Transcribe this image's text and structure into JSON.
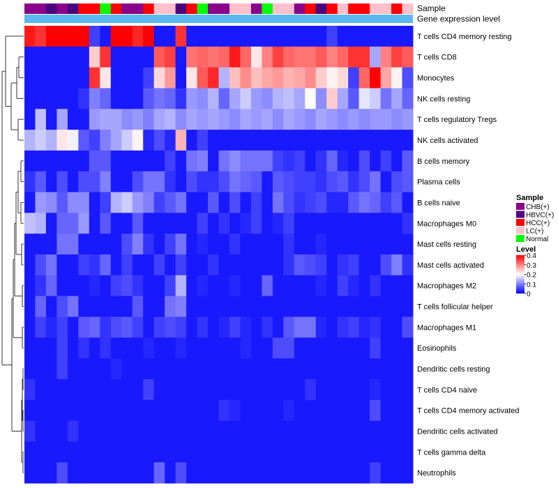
{
  "chart_data": {
    "type": "heatmap",
    "title": "",
    "annotation_labels": {
      "sample": "Sample",
      "gene": "Gene expression level"
    },
    "sample_groups": {
      "CHB(+)": "#8B008B",
      "HBVC(+)": "#4B0082",
      "HCC(+)": "#FF0000",
      "LC(+)": "#FFC0CB",
      "Normal": "#00FF00"
    },
    "samples": [
      "CHB(+)",
      "CHB(+)",
      "HBVC(+)",
      "CHB(+)",
      "HBVC(+)",
      "HCC(+)",
      "HCC(+)",
      "Normal",
      "HCC(+)",
      "CHB(+)",
      "CHB(+)",
      "HCC(+)",
      "LC(+)",
      "LC(+)",
      "HBVC(+)",
      "HCC(+)",
      "Normal",
      "CHB(+)",
      "CHB(+)",
      "LC(+)",
      "LC(+)",
      "CHB(+)",
      "Normal",
      "LC(+)",
      "LC(+)",
      "CHB(+)",
      "HCC(+)",
      "HBVC(+)",
      "HCC(+)",
      "LC(+)",
      "HCC(+)",
      "HCC(+)",
      "LC(+)",
      "LC(+)",
      "HCC(+)",
      "LC(+)"
    ],
    "rows": [
      "T cells CD4 memory resting",
      "T cells CD8",
      "Monocytes",
      "NK cells resting",
      "T cells regulatory  Tregs",
      "NK cells activated",
      "B cells memory",
      "Plasma cells",
      "B cells naive",
      "Macrophages M0",
      "Mast cells resting",
      "Mast cells activated",
      "Macrophages M2",
      "T cells follicular helper",
      "Macrophages M1",
      "Eosinophils",
      "Dendritic cells resting",
      "T cells CD4 naive",
      "T cells CD4 memory activated",
      "Dendritic cells activated",
      "T cells gamma delta",
      "Neutrophils"
    ],
    "values": [
      [
        0.38,
        0.36,
        0.4,
        0.4,
        0.4,
        0.4,
        0.05,
        0.02,
        0.4,
        0.4,
        0.37,
        0.4,
        0.02,
        0.02,
        0.36,
        0.02,
        0.02,
        0.02,
        0.02,
        0.02,
        0.02,
        0.02,
        0.02,
        0.02,
        0.02,
        0.02,
        0.02,
        0.02,
        0.05,
        0.02,
        0.02,
        0.02,
        0.02,
        0.02,
        0.02,
        0.02
      ],
      [
        0.02,
        0.02,
        0.02,
        0.02,
        0.02,
        0.02,
        0.24,
        0.36,
        0.02,
        0.02,
        0.02,
        0.02,
        0.33,
        0.35,
        0.02,
        0.31,
        0.32,
        0.31,
        0.32,
        0.38,
        0.32,
        0.22,
        0.3,
        0.35,
        0.32,
        0.31,
        0.31,
        0.33,
        0.3,
        0.32,
        0.36,
        0.36,
        0.13,
        0.3,
        0.35,
        0.33
      ],
      [
        0.02,
        0.02,
        0.02,
        0.02,
        0.02,
        0.02,
        0.36,
        0.22,
        0.02,
        0.02,
        0.02,
        0.05,
        0.23,
        0.28,
        0.02,
        0.22,
        0.33,
        0.37,
        0.14,
        0.25,
        0.29,
        0.25,
        0.27,
        0.28,
        0.26,
        0.27,
        0.29,
        0.24,
        0.21,
        0.23,
        0.05,
        0.32,
        0.4,
        0.27,
        0.21,
        0.06
      ],
      [
        0.02,
        0.02,
        0.02,
        0.02,
        0.02,
        0.04,
        0.1,
        0.08,
        0.02,
        0.02,
        0.02,
        0.07,
        0.09,
        0.08,
        0.04,
        0.12,
        0.11,
        0.14,
        0.08,
        0.13,
        0.16,
        0.12,
        0.11,
        0.14,
        0.15,
        0.13,
        0.2,
        0.11,
        0.24,
        0.13,
        0.07,
        0.18,
        0.16,
        0.09,
        0.13,
        0.08
      ],
      [
        0.02,
        0.15,
        0.02,
        0.13,
        0.02,
        0.02,
        0.12,
        0.13,
        0.13,
        0.11,
        0.12,
        0.1,
        0.13,
        0.14,
        0.11,
        0.13,
        0.12,
        0.13,
        0.12,
        0.11,
        0.13,
        0.12,
        0.13,
        0.11,
        0.13,
        0.12,
        0.11,
        0.13,
        0.12,
        0.11,
        0.12,
        0.11,
        0.12,
        0.12,
        0.11,
        0.12
      ],
      [
        0.14,
        0.16,
        0.14,
        0.22,
        0.19,
        0.07,
        0.05,
        0.1,
        0.13,
        0.16,
        0.21,
        0.03,
        0.06,
        0.03,
        0.26,
        0.02,
        0.05,
        0.02,
        0.02,
        0.02,
        0.02,
        0.02,
        0.02,
        0.02,
        0.02,
        0.02,
        0.02,
        0.02,
        0.02,
        0.02,
        0.02,
        0.02,
        0.02,
        0.02,
        0.02,
        0.02
      ],
      [
        0.02,
        0.02,
        0.02,
        0.02,
        0.02,
        0.02,
        0.07,
        0.07,
        0.02,
        0.02,
        0.02,
        0.02,
        0.02,
        0.05,
        0.02,
        0.09,
        0.1,
        0.02,
        0.09,
        0.11,
        0.09,
        0.09,
        0.09,
        0.05,
        0.04,
        0.05,
        0.02,
        0.04,
        0.08,
        0.03,
        0.02,
        0.06,
        0.02,
        0.05,
        0.02,
        0.07
      ],
      [
        0.04,
        0.07,
        0.02,
        0.06,
        0.02,
        0.06,
        0.06,
        0.1,
        0.02,
        0.02,
        0.06,
        0.09,
        0.09,
        0.04,
        0.02,
        0.06,
        0.04,
        0.04,
        0.06,
        0.09,
        0.08,
        0.07,
        0.02,
        0.07,
        0.06,
        0.05,
        0.05,
        0.04,
        0.06,
        0.07,
        0.04,
        0.06,
        0.09,
        0.02,
        0.06,
        0.07
      ],
      [
        0.02,
        0.12,
        0.11,
        0.07,
        0.11,
        0.11,
        0.02,
        0.05,
        0.14,
        0.16,
        0.12,
        0.1,
        0.05,
        0.07,
        0.09,
        0.02,
        0.02,
        0.07,
        0.02,
        0.06,
        0.02,
        0.05,
        0.02,
        0.09,
        0.06,
        0.04,
        0.05,
        0.06,
        0.03,
        0.03,
        0.07,
        0.09,
        0.08,
        0.05,
        0.07,
        0.02
      ],
      [
        0.15,
        0.14,
        0.02,
        0.08,
        0.08,
        0.12,
        0.02,
        0.07,
        0.02,
        0.02,
        0.07,
        0.02,
        0.02,
        0.02,
        0.02,
        0.02,
        0.05,
        0.02,
        0.04,
        0.02,
        0.03,
        0.05,
        0.02,
        0.03,
        0.05,
        0.02,
        0.02,
        0.02,
        0.02,
        0.02,
        0.02,
        0.02,
        0.02,
        0.02,
        0.02,
        0.04
      ],
      [
        0.02,
        0.02,
        0.02,
        0.09,
        0.09,
        0.02,
        0.02,
        0.02,
        0.02,
        0.06,
        0.1,
        0.04,
        0.02,
        0.05,
        0.09,
        0.02,
        0.03,
        0.02,
        0.02,
        0.04,
        0.02,
        0.02,
        0.02,
        0.02,
        0.04,
        0.02,
        0.02,
        0.03,
        0.02,
        0.02,
        0.02,
        0.02,
        0.02,
        0.02,
        0.02,
        0.02
      ],
      [
        0.02,
        0.06,
        0.09,
        0.02,
        0.02,
        0.05,
        0.04,
        0.08,
        0.02,
        0.05,
        0.02,
        0.02,
        0.05,
        0.02,
        0.05,
        0.02,
        0.02,
        0.04,
        0.02,
        0.02,
        0.02,
        0.02,
        0.02,
        0.02,
        0.04,
        0.07,
        0.06,
        0.05,
        0.02,
        0.04,
        0.05,
        0.02,
        0.02,
        0.06,
        0.1,
        0.04
      ],
      [
        0.02,
        0.04,
        0.08,
        0.02,
        0.02,
        0.02,
        0.03,
        0.02,
        0.05,
        0.06,
        0.04,
        0.02,
        0.02,
        0.05,
        0.14,
        0.02,
        0.03,
        0.02,
        0.02,
        0.03,
        0.02,
        0.02,
        0.08,
        0.02,
        0.02,
        0.02,
        0.02,
        0.03,
        0.02,
        0.05,
        0.03,
        0.02,
        0.04,
        0.02,
        0.02,
        0.02
      ],
      [
        0.02,
        0.08,
        0.02,
        0.06,
        0.09,
        0.02,
        0.02,
        0.02,
        0.02,
        0.02,
        0.07,
        0.02,
        0.02,
        0.09,
        0.1,
        0.02,
        0.02,
        0.02,
        0.02,
        0.02,
        0.02,
        0.02,
        0.02,
        0.02,
        0.02,
        0.02,
        0.02,
        0.02,
        0.02,
        0.02,
        0.02,
        0.02,
        0.02,
        0.02,
        0.02,
        0.02
      ],
      [
        0.02,
        0.05,
        0.03,
        0.05,
        0.02,
        0.07,
        0.08,
        0.04,
        0.06,
        0.07,
        0.05,
        0.02,
        0.05,
        0.06,
        0.05,
        0.02,
        0.04,
        0.02,
        0.03,
        0.05,
        0.03,
        0.02,
        0.04,
        0.02,
        0.07,
        0.09,
        0.09,
        0.03,
        0.02,
        0.04,
        0.05,
        0.03,
        0.04,
        0.02,
        0.02,
        0.06
      ],
      [
        0.02,
        0.02,
        0.02,
        0.05,
        0.02,
        0.04,
        0.02,
        0.04,
        0.02,
        0.02,
        0.02,
        0.03,
        0.02,
        0.02,
        0.03,
        0.02,
        0.02,
        0.02,
        0.02,
        0.02,
        0.03,
        0.02,
        0.02,
        0.06,
        0.06,
        0.02,
        0.02,
        0.02,
        0.02,
        0.02,
        0.02,
        0.02,
        0.05,
        0.02,
        0.02,
        0.02
      ],
      [
        0.02,
        0.02,
        0.02,
        0.05,
        0.02,
        0.02,
        0.02,
        0.02,
        0.03,
        0.02,
        0.02,
        0.02,
        0.02,
        0.02,
        0.02,
        0.02,
        0.02,
        0.02,
        0.02,
        0.02,
        0.02,
        0.02,
        0.02,
        0.02,
        0.02,
        0.02,
        0.02,
        0.02,
        0.02,
        0.02,
        0.02,
        0.02,
        0.02,
        0.02,
        0.02,
        0.02
      ],
      [
        0.04,
        0.02,
        0.02,
        0.02,
        0.02,
        0.02,
        0.02,
        0.02,
        0.02,
        0.02,
        0.02,
        0.05,
        0.02,
        0.02,
        0.02,
        0.02,
        0.02,
        0.02,
        0.02,
        0.02,
        0.02,
        0.02,
        0.02,
        0.02,
        0.02,
        0.02,
        0.04,
        0.02,
        0.02,
        0.02,
        0.02,
        0.02,
        0.03,
        0.02,
        0.02,
        0.02
      ],
      [
        0.02,
        0.02,
        0.02,
        0.02,
        0.02,
        0.02,
        0.02,
        0.02,
        0.02,
        0.02,
        0.02,
        0.02,
        0.02,
        0.02,
        0.02,
        0.02,
        0.02,
        0.02,
        0.04,
        0.03,
        0.02,
        0.02,
        0.02,
        0.02,
        0.03,
        0.02,
        0.02,
        0.02,
        0.02,
        0.02,
        0.02,
        0.02,
        0.06,
        0.02,
        0.02,
        0.02
      ],
      [
        0.04,
        0.02,
        0.02,
        0.02,
        0.04,
        0.02,
        0.02,
        0.02,
        0.02,
        0.02,
        0.02,
        0.02,
        0.02,
        0.02,
        0.02,
        0.02,
        0.02,
        0.02,
        0.02,
        0.02,
        0.02,
        0.02,
        0.02,
        0.02,
        0.02,
        0.02,
        0.02,
        0.02,
        0.02,
        0.02,
        0.02,
        0.02,
        0.02,
        0.02,
        0.02,
        0.02
      ],
      [
        0.02,
        0.02,
        0.02,
        0.02,
        0.02,
        0.02,
        0.02,
        0.02,
        0.02,
        0.02,
        0.02,
        0.02,
        0.02,
        0.02,
        0.02,
        0.02,
        0.02,
        0.02,
        0.02,
        0.02,
        0.02,
        0.02,
        0.02,
        0.02,
        0.02,
        0.02,
        0.02,
        0.02,
        0.02,
        0.02,
        0.02,
        0.02,
        0.02,
        0.02,
        0.02,
        0.02
      ],
      [
        0.02,
        0.02,
        0.02,
        0.06,
        0.02,
        0.02,
        0.02,
        0.02,
        0.02,
        0.02,
        0.02,
        0.02,
        0.08,
        0.02,
        0.06,
        0.02,
        0.02,
        0.02,
        0.02,
        0.02,
        0.02,
        0.02,
        0.02,
        0.02,
        0.02,
        0.02,
        0.02,
        0.02,
        0.02,
        0.02,
        0.02,
        0.02,
        0.05,
        0.02,
        0.02,
        0.02
      ]
    ],
    "color_scale": {
      "min": 0,
      "max": 0.4,
      "colors": [
        "#0000FF",
        "#FFFFFF",
        "#FF0000"
      ],
      "midpoint": 0.2
    },
    "legend": {
      "sample_title": "Sample",
      "sample_entries": [
        "CHB(+)",
        "HBVC(+)",
        "HCC(+)",
        "LC(+)",
        "Normal"
      ],
      "level_title": "Level",
      "level_ticks": [
        "0.4",
        "0.3",
        "0.2",
        "0.1",
        "0"
      ],
      "placement": "right"
    },
    "gene_annotation_color": "#5BB8F0",
    "dendrogram": "left"
  }
}
